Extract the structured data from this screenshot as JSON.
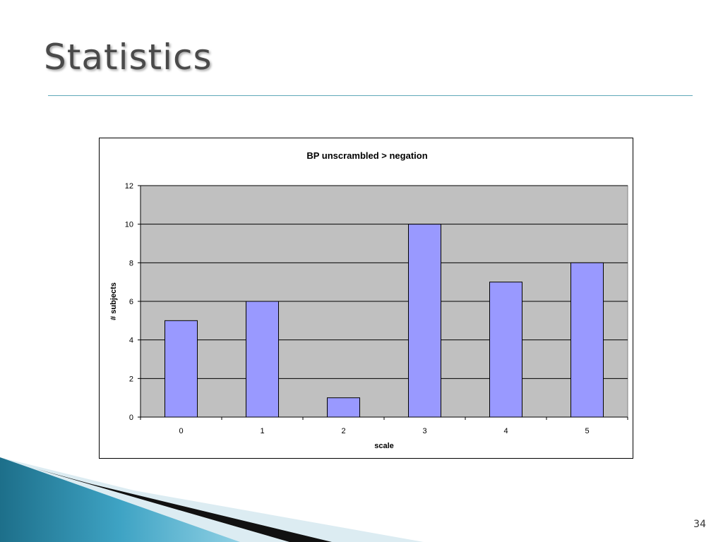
{
  "slide": {
    "title": "Statistics",
    "page_number": "34"
  },
  "colors": {
    "bar_fill": "#9999ff",
    "plot_background": "#c0c0c0",
    "accent_rule": "#5fa8b8"
  },
  "chart_data": {
    "type": "bar",
    "title": "BP unscrambled > negation",
    "xlabel": "scale",
    "ylabel": "# subjects",
    "categories": [
      "0",
      "1",
      "2",
      "3",
      "4",
      "5"
    ],
    "values": [
      5,
      6,
      1,
      10,
      7,
      8
    ],
    "ylim": [
      0,
      12
    ],
    "yticks": [
      0,
      2,
      4,
      6,
      8,
      10,
      12
    ],
    "grid": true,
    "legend": "none"
  }
}
